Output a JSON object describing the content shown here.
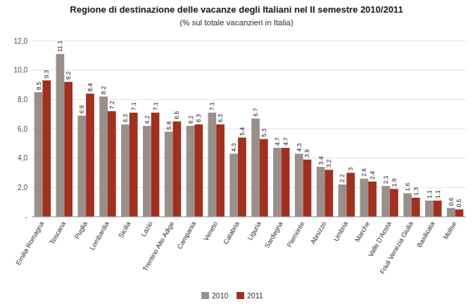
{
  "chart_data": {
    "type": "bar",
    "title": "Regione di destinazione delle vacanze degli Italiani nel II semestre 2010/2011",
    "subtitle": "(% sul totale vacanzieri in Italia)",
    "categories": [
      "Emilia Romagna",
      "Toscana",
      "Puglia",
      "Lombardia",
      "Sicilia",
      "Lazio",
      "Trentino Alto Adige",
      "Campania",
      "Veneto",
      "Calabria",
      "Liguria",
      "Sardegna",
      "Piemonte",
      "Abruzzo",
      "Umbria",
      "Marche",
      "Valle D'Aosta",
      "Friuli Venezia Giulia",
      "Basilicata",
      "Molise"
    ],
    "series": [
      {
        "name": "2010",
        "color": "#9A9089",
        "values": [
          8.5,
          11.1,
          6.9,
          8.2,
          6.3,
          6.2,
          5.8,
          6.2,
          7.1,
          4.3,
          6.7,
          4.7,
          4.3,
          3.4,
          2.2,
          2.6,
          2.1,
          1.6,
          1.1,
          0.6
        ]
      },
      {
        "name": "2011",
        "color": "#A03020",
        "values": [
          9.3,
          9.2,
          8.4,
          7.2,
          7.1,
          7.1,
          6.5,
          6.3,
          6.3,
          5.4,
          5.3,
          4.7,
          3.9,
          3.2,
          3.0,
          2.4,
          1.9,
          1.3,
          1.1,
          0.5
        ]
      }
    ],
    "ylim": [
      0,
      12.0
    ],
    "yticks": [
      {
        "value": 0,
        "label": "-"
      },
      {
        "value": 2.0,
        "label": "2,0"
      },
      {
        "value": 4.0,
        "label": "4,0"
      },
      {
        "value": 6.0,
        "label": "6,0"
      },
      {
        "value": 8.0,
        "label": "8,0"
      },
      {
        "value": 10.0,
        "label": "10,0"
      },
      {
        "value": 12.0,
        "label": "12,0"
      }
    ],
    "grid": true,
    "legend": "bottom",
    "data_labels": true
  }
}
